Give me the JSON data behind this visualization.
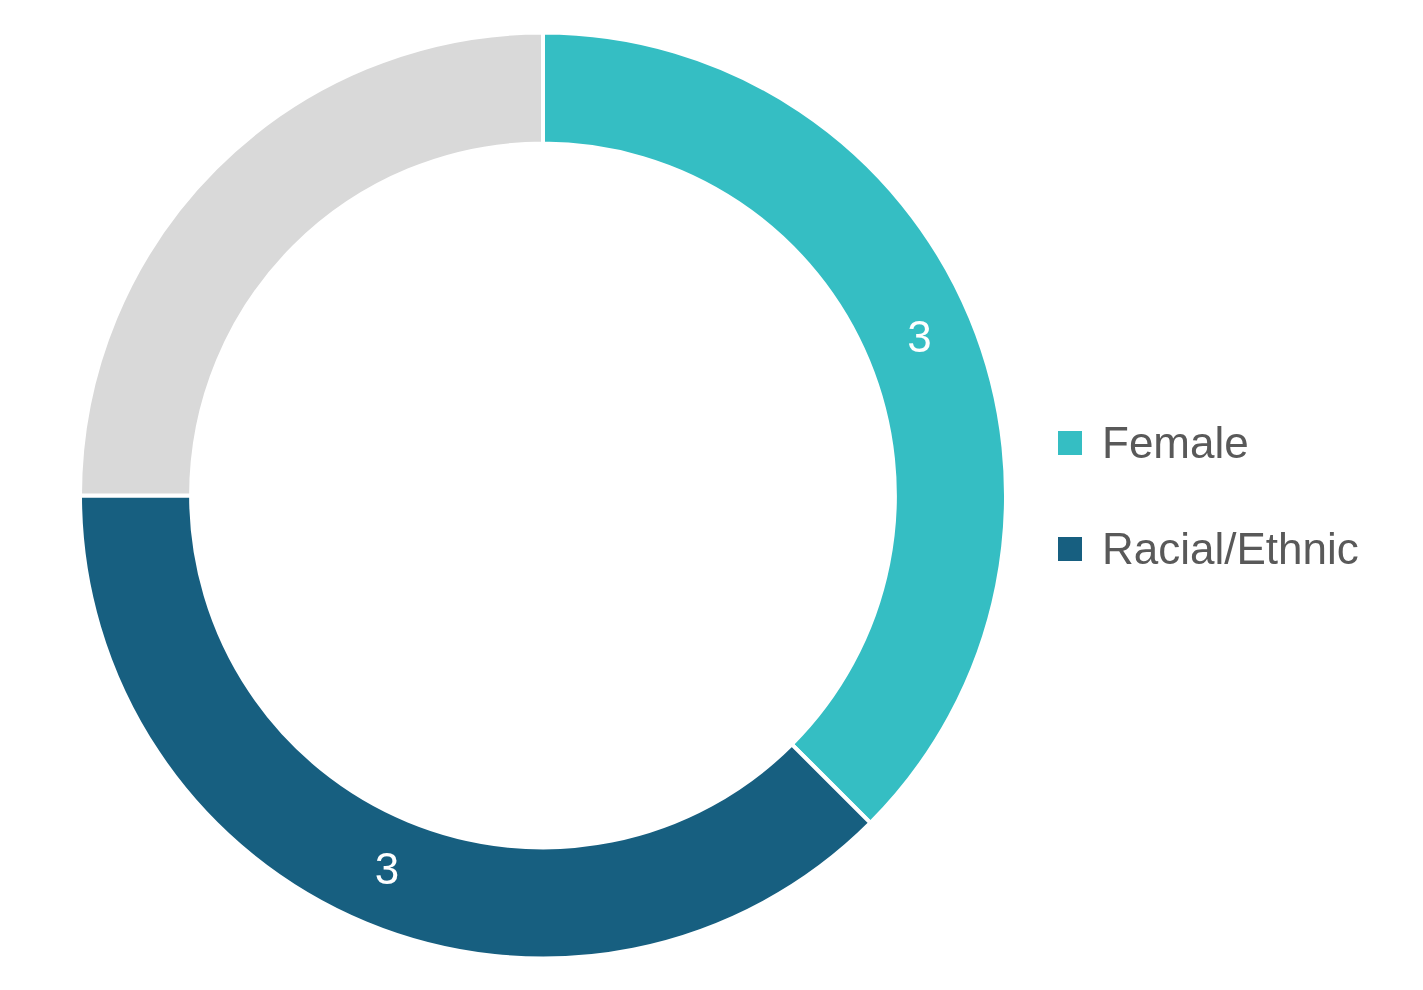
{
  "chart_data": {
    "type": "donut",
    "categories": [
      "Female",
      "Racial/Ethnic",
      null
    ],
    "values": [
      3,
      3,
      2
    ],
    "colors": [
      "#35bec3",
      "#175f80",
      "#d9d9d9"
    ],
    "value_labels": [
      "3",
      "3",
      null
    ],
    "legend": "right"
  }
}
